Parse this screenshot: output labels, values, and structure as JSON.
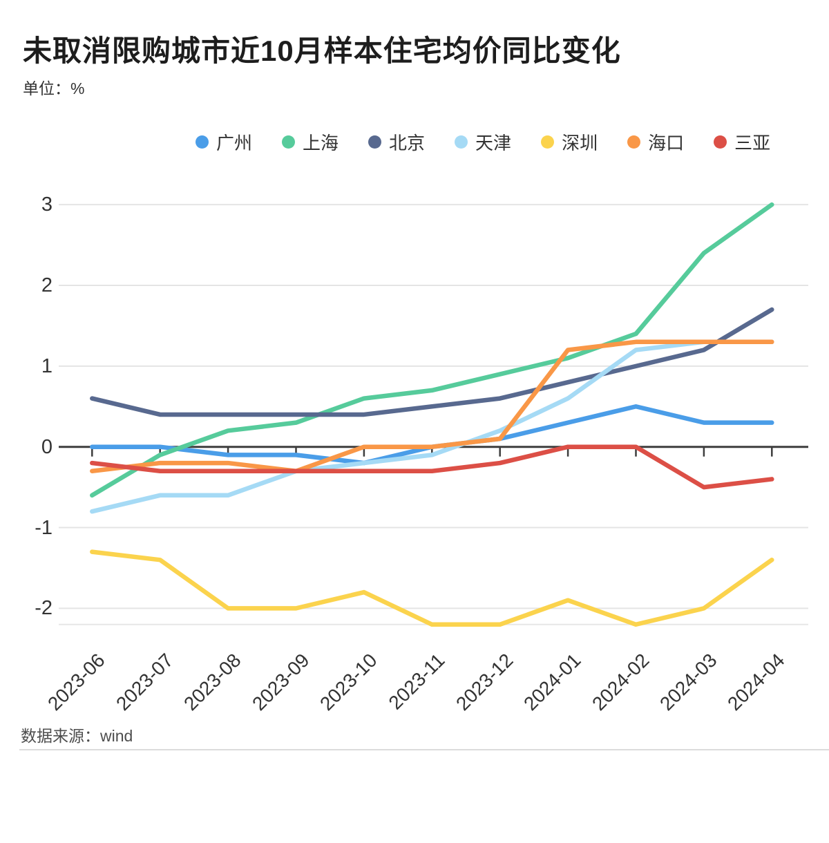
{
  "header": {
    "title": "未取消限购城市近10月样本住宅均价同比变化",
    "unit_label": "单位：%"
  },
  "footer": {
    "source": "数据来源：wind"
  },
  "chart_data": {
    "type": "line",
    "title": "未取消限购城市近10月样本住宅均价同比变化",
    "unit": "%",
    "x": [
      "2023-06",
      "2023-07",
      "2023-08",
      "2023-09",
      "2023-10",
      "2023-11",
      "2023-12",
      "2024-01",
      "2024-02",
      "2024-03",
      "2024-04"
    ],
    "series": [
      {
        "id": "guangzhou",
        "name": "广州",
        "color": "#4a9de8",
        "values": [
          0.0,
          0.0,
          -0.1,
          -0.1,
          -0.2,
          0.0,
          0.1,
          0.3,
          0.5,
          0.3,
          0.3
        ]
      },
      {
        "id": "shanghai",
        "name": "上海",
        "color": "#56cb9b",
        "values": [
          -0.6,
          -0.1,
          0.2,
          0.3,
          0.6,
          0.7,
          0.9,
          1.1,
          1.4,
          2.4,
          3.0
        ]
      },
      {
        "id": "beijing",
        "name": "北京",
        "color": "#58698f",
        "values": [
          0.6,
          0.4,
          0.4,
          0.4,
          0.4,
          0.5,
          0.6,
          0.8,
          1.0,
          1.2,
          1.7
        ]
      },
      {
        "id": "tianjin",
        "name": "天津",
        "color": "#a5daf5",
        "values": [
          -0.8,
          -0.6,
          -0.6,
          -0.3,
          -0.2,
          -0.1,
          0.2,
          0.6,
          1.2,
          1.3,
          1.3
        ]
      },
      {
        "id": "shenzhen",
        "name": "深圳",
        "color": "#fbd34d",
        "values": [
          -1.3,
          -1.4,
          -2.0,
          -2.0,
          -1.8,
          -2.2,
          -2.2,
          -1.9,
          -2.2,
          -2.0,
          -1.4
        ]
      },
      {
        "id": "haikou",
        "name": "海口",
        "color": "#f99747",
        "values": [
          -0.3,
          -0.2,
          -0.2,
          -0.3,
          0.0,
          0.0,
          0.1,
          1.2,
          1.3,
          1.3,
          1.3
        ]
      },
      {
        "id": "sanya",
        "name": "三亚",
        "color": "#dc4f46",
        "values": [
          -0.2,
          -0.3,
          -0.3,
          -0.3,
          -0.3,
          -0.3,
          -0.2,
          0.0,
          0.0,
          -0.5,
          -0.4
        ]
      }
    ],
    "y_ticks": [
      3,
      2,
      1,
      0,
      -1,
      -2
    ],
    "ylim": [
      -2.2,
      3
    ],
    "xlabel": "",
    "ylabel": "",
    "grid": true,
    "legend_position": "top"
  }
}
